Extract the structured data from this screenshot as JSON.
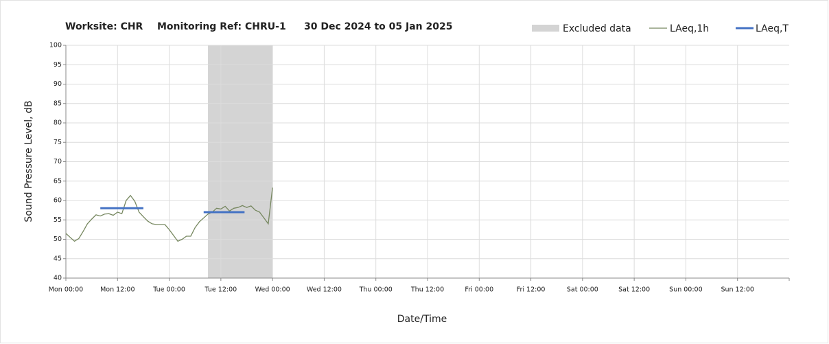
{
  "chart_data": {
    "type": "line",
    "title_parts": [
      "Worksite: CHR",
      "Monitoring Ref: CHRU-1",
      "30 Dec 2024 to 05 Jan 2025"
    ],
    "x_label": "Date/Time",
    "y_label": "Sound Pressure Level, dB",
    "xlim": [
      0,
      168
    ],
    "xticks": [
      {
        "value": 0,
        "label": "Mon 00:00"
      },
      {
        "value": 12,
        "label": "Mon 12:00"
      },
      {
        "value": 24,
        "label": "Tue 00:00"
      },
      {
        "value": 36,
        "label": "Tue 12:00"
      },
      {
        "value": 48,
        "label": "Wed 00:00"
      },
      {
        "value": 60,
        "label": "Wed 12:00"
      },
      {
        "value": 72,
        "label": "Thu 00:00"
      },
      {
        "value": 84,
        "label": "Thu 12:00"
      },
      {
        "value": 96,
        "label": "Fri 00:00"
      },
      {
        "value": 108,
        "label": "Fri 12:00"
      },
      {
        "value": 120,
        "label": "Sat 00:00"
      },
      {
        "value": 132,
        "label": "Sat 12:00"
      },
      {
        "value": 144,
        "label": "Sun 00:00"
      },
      {
        "value": 156,
        "label": "Sun 12:00"
      }
    ],
    "ylim": [
      40,
      100
    ],
    "yticks": [
      40,
      45,
      50,
      55,
      60,
      65,
      70,
      75,
      80,
      85,
      90,
      95,
      100
    ],
    "grid": true,
    "excluded": {
      "name": "Excluded data",
      "color": "#d4d4d4",
      "x": [
        33,
        48
      ]
    },
    "series": [
      {
        "name": "LAeq,1h",
        "color": "#76875f",
        "x": [
          0,
          1,
          2,
          3,
          4,
          5,
          6,
          7,
          8,
          9,
          10,
          11,
          12,
          13,
          14,
          15,
          16,
          17,
          18,
          19,
          20,
          21,
          22,
          23,
          24,
          25,
          26,
          27,
          28,
          29,
          30,
          31,
          32,
          33,
          34,
          35,
          36,
          37,
          38,
          39,
          40,
          41,
          42,
          43,
          44,
          45,
          46,
          47,
          48
        ],
        "values": [
          51.5,
          50.5,
          49.5,
          50.2,
          52,
          54,
          55.2,
          56.3,
          56,
          56.5,
          56.6,
          56.2,
          57,
          56.6,
          60,
          61.3,
          59.8,
          57,
          55.8,
          54.7,
          54,
          53.8,
          53.8,
          53.8,
          52.5,
          51,
          49.5,
          50,
          50.8,
          50.8,
          53,
          54.5,
          55.5,
          56.5,
          57,
          58,
          57.8,
          58.5,
          57.3,
          58,
          58.2,
          58.7,
          58.2,
          58.6,
          57.5,
          57,
          55.5,
          54,
          63.3
        ]
      },
      {
        "name": "LAeq,T",
        "color": "#4472c4",
        "periods": [
          {
            "x": [
              8,
              18
            ],
            "value": 58
          },
          {
            "x": [
              32,
              41.5
            ],
            "value": 57
          }
        ]
      }
    ]
  }
}
